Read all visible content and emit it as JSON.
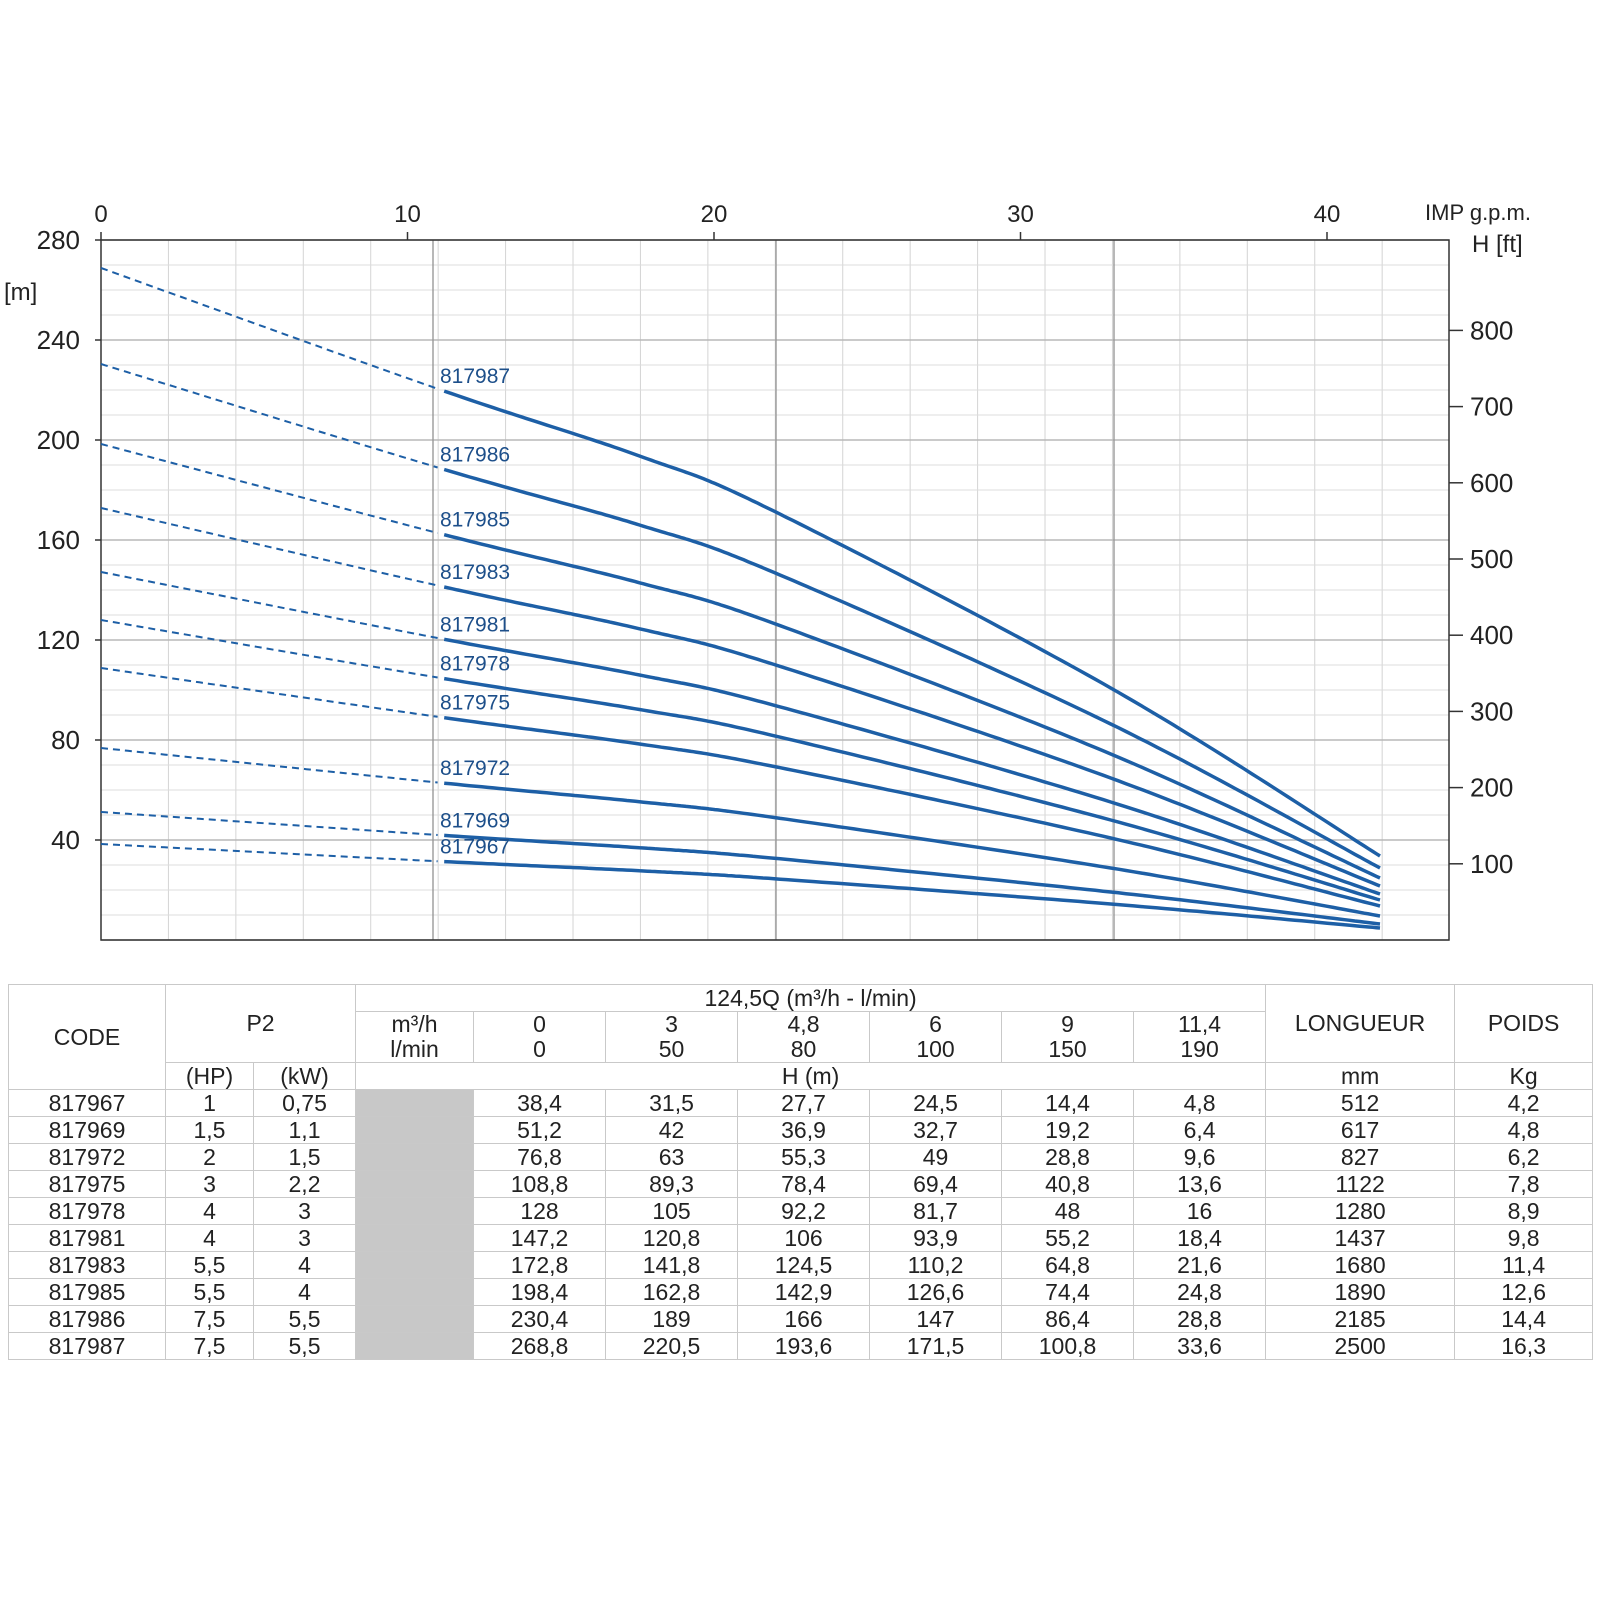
{
  "chart_data": {
    "type": "line",
    "top_axis": {
      "label": "IMP g.p.m.",
      "range": [
        0,
        42
      ],
      "ticks": [
        "0",
        "10",
        "20",
        "30",
        "40"
      ]
    },
    "left_axis": {
      "unit_label": "[m]",
      "range": [
        0,
        280
      ],
      "ticks": [
        "280",
        "240",
        "200",
        "160",
        "120",
        "80",
        "40"
      ]
    },
    "right_axis": {
      "label": "H [ft]",
      "ticks": [
        "800",
        "700",
        "600",
        "500",
        "400",
        "300",
        "200",
        "100"
      ]
    },
    "grid": true,
    "x": [
      0,
      3,
      4.8,
      6,
      9,
      11.4
    ],
    "series": [
      {
        "name": "817987",
        "values": [
          268.8,
          220.5,
          193.6,
          171.5,
          100.8,
          33.6
        ]
      },
      {
        "name": "817986",
        "values": [
          230.4,
          189,
          166,
          147,
          86.4,
          28.8
        ]
      },
      {
        "name": "817985",
        "values": [
          198.4,
          162.8,
          142.9,
          126.6,
          74.4,
          24.8
        ]
      },
      {
        "name": "817983",
        "values": [
          172.8,
          141.8,
          124.5,
          110.2,
          64.8,
          21.6
        ]
      },
      {
        "name": "817981",
        "values": [
          147.2,
          120.8,
          106,
          93.9,
          55.2,
          18.4
        ]
      },
      {
        "name": "817978",
        "values": [
          128,
          105,
          92.2,
          81.7,
          48,
          16
        ]
      },
      {
        "name": "817975",
        "values": [
          108.8,
          89.3,
          78.4,
          69.4,
          40.8,
          13.6
        ]
      },
      {
        "name": "817972",
        "values": [
          76.8,
          63,
          55.3,
          49,
          28.8,
          9.6
        ]
      },
      {
        "name": "817969",
        "values": [
          51.2,
          42,
          36.9,
          32.7,
          19.2,
          6.4
        ]
      },
      {
        "name": "817967",
        "values": [
          38.4,
          31.5,
          27.7,
          24.5,
          14.4,
          4.8
        ]
      }
    ],
    "line_color": "#1d5fa6"
  },
  "table": {
    "head_code": "CODE",
    "head_p2": "P2",
    "head_q": "124,5Q (m³/h - l/min)",
    "head_m3h": "m³/h",
    "head_lmin": "l/min",
    "q_m3h": [
      "0",
      "3",
      "4,8",
      "6",
      "9",
      "11,4"
    ],
    "q_lmin": [
      "0",
      "50",
      "80",
      "100",
      "150",
      "190"
    ],
    "head_longueur": "LONGUEUR",
    "head_poids": "POIDS",
    "head_hp": "(HP)",
    "head_kw": "(kW)",
    "head_h": "H (m)",
    "head_mm": "mm",
    "head_kg": "Kg",
    "rows": [
      {
        "code": "817967",
        "hp": "1",
        "kw": "0,75",
        "h": [
          "38,4",
          "31,5",
          "27,7",
          "24,5",
          "14,4",
          "4,8"
        ],
        "mm": "512",
        "kg": "4,2"
      },
      {
        "code": "817969",
        "hp": "1,5",
        "kw": "1,1",
        "h": [
          "51,2",
          "42",
          "36,9",
          "32,7",
          "19,2",
          "6,4"
        ],
        "mm": "617",
        "kg": "4,8"
      },
      {
        "code": "817972",
        "hp": "2",
        "kw": "1,5",
        "h": [
          "76,8",
          "63",
          "55,3",
          "49",
          "28,8",
          "9,6"
        ],
        "mm": "827",
        "kg": "6,2"
      },
      {
        "code": "817975",
        "hp": "3",
        "kw": "2,2",
        "h": [
          "108,8",
          "89,3",
          "78,4",
          "69,4",
          "40,8",
          "13,6"
        ],
        "mm": "1122",
        "kg": "7,8"
      },
      {
        "code": "817978",
        "hp": "4",
        "kw": "3",
        "h": [
          "128",
          "105",
          "92,2",
          "81,7",
          "48",
          "16"
        ],
        "mm": "1280",
        "kg": "8,9"
      },
      {
        "code": "817981",
        "hp": "4",
        "kw": "3",
        "h": [
          "147,2",
          "120,8",
          "106",
          "93,9",
          "55,2",
          "18,4"
        ],
        "mm": "1437",
        "kg": "9,8"
      },
      {
        "code": "817983",
        "hp": "5,5",
        "kw": "4",
        "h": [
          "172,8",
          "141,8",
          "124,5",
          "110,2",
          "64,8",
          "21,6"
        ],
        "mm": "1680",
        "kg": "11,4"
      },
      {
        "code": "817985",
        "hp": "5,5",
        "kw": "4",
        "h": [
          "198,4",
          "162,8",
          "142,9",
          "126,6",
          "74,4",
          "24,8"
        ],
        "mm": "1890",
        "kg": "12,6"
      },
      {
        "code": "817986",
        "hp": "7,5",
        "kw": "5,5",
        "h": [
          "230,4",
          "189",
          "166",
          "147",
          "86,4",
          "28,8"
        ],
        "mm": "2185",
        "kg": "14,4"
      },
      {
        "code": "817987",
        "hp": "7,5",
        "kw": "5,5",
        "h": [
          "268,8",
          "220,5",
          "193,6",
          "171,5",
          "100,8",
          "33,6"
        ],
        "mm": "2500",
        "kg": "16,3"
      }
    ]
  }
}
